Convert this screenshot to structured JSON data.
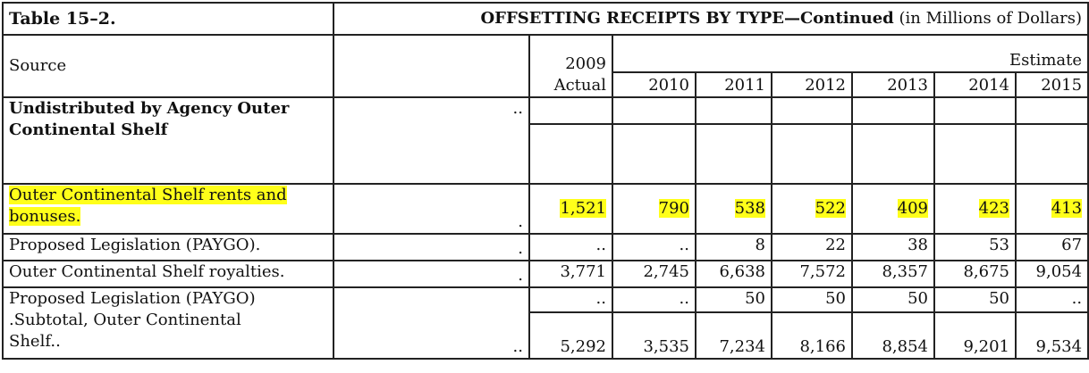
{
  "title": {
    "table_label": "Table 15–2.",
    "heading": "OFFSETTING RECEIPTS BY TYPE—Continued",
    "units": "(in Millions of Dollars)"
  },
  "header": {
    "source": "Source",
    "year_actual": "2009",
    "actual": "Actual",
    "estimate": "Estimate",
    "years": [
      "2010",
      "2011",
      "2012",
      "2013",
      "2014",
      "2015"
    ]
  },
  "highlight_color": "#ffff1a",
  "rows": [
    {
      "label_lines": [
        "Undistributed by Agency Outer",
        "Continental Shelf"
      ],
      "leader": "..",
      "values": [
        "",
        "",
        "",
        "",
        "",
        "",
        ""
      ]
    },
    {
      "label_lines": [
        "Outer Continental Shelf rents and",
        "bonuses."
      ],
      "leader": ".",
      "values": [
        "1,521",
        "790",
        "538",
        "522",
        "409",
        "423",
        "413"
      ]
    },
    {
      "label_lines": [
        "Proposed Legislation (PAYGO)."
      ],
      "leader": ".",
      "values": [
        "..",
        "..",
        "8",
        "22",
        "38",
        "53",
        "67"
      ]
    },
    {
      "label_lines": [
        "Outer Continental Shelf royalties."
      ],
      "leader": ".",
      "values": [
        "3,771",
        "2,745",
        "6,638",
        "7,572",
        "8,357",
        "8,675",
        "9,054"
      ]
    },
    {
      "label_lines": [
        "Proposed Legislation (PAYGO)"
      ],
      "leader": "",
      "values": [
        "..",
        "..",
        "50",
        "50",
        "50",
        "50",
        ".."
      ]
    },
    {
      "label_lines": [
        ".Subtotal, Outer Continental",
        "Shelf.."
      ],
      "leader": "..",
      "values": [
        "5,292",
        "3,535",
        "7,234",
        "8,166",
        "8,854",
        "9,201",
        "9,534"
      ]
    }
  ]
}
